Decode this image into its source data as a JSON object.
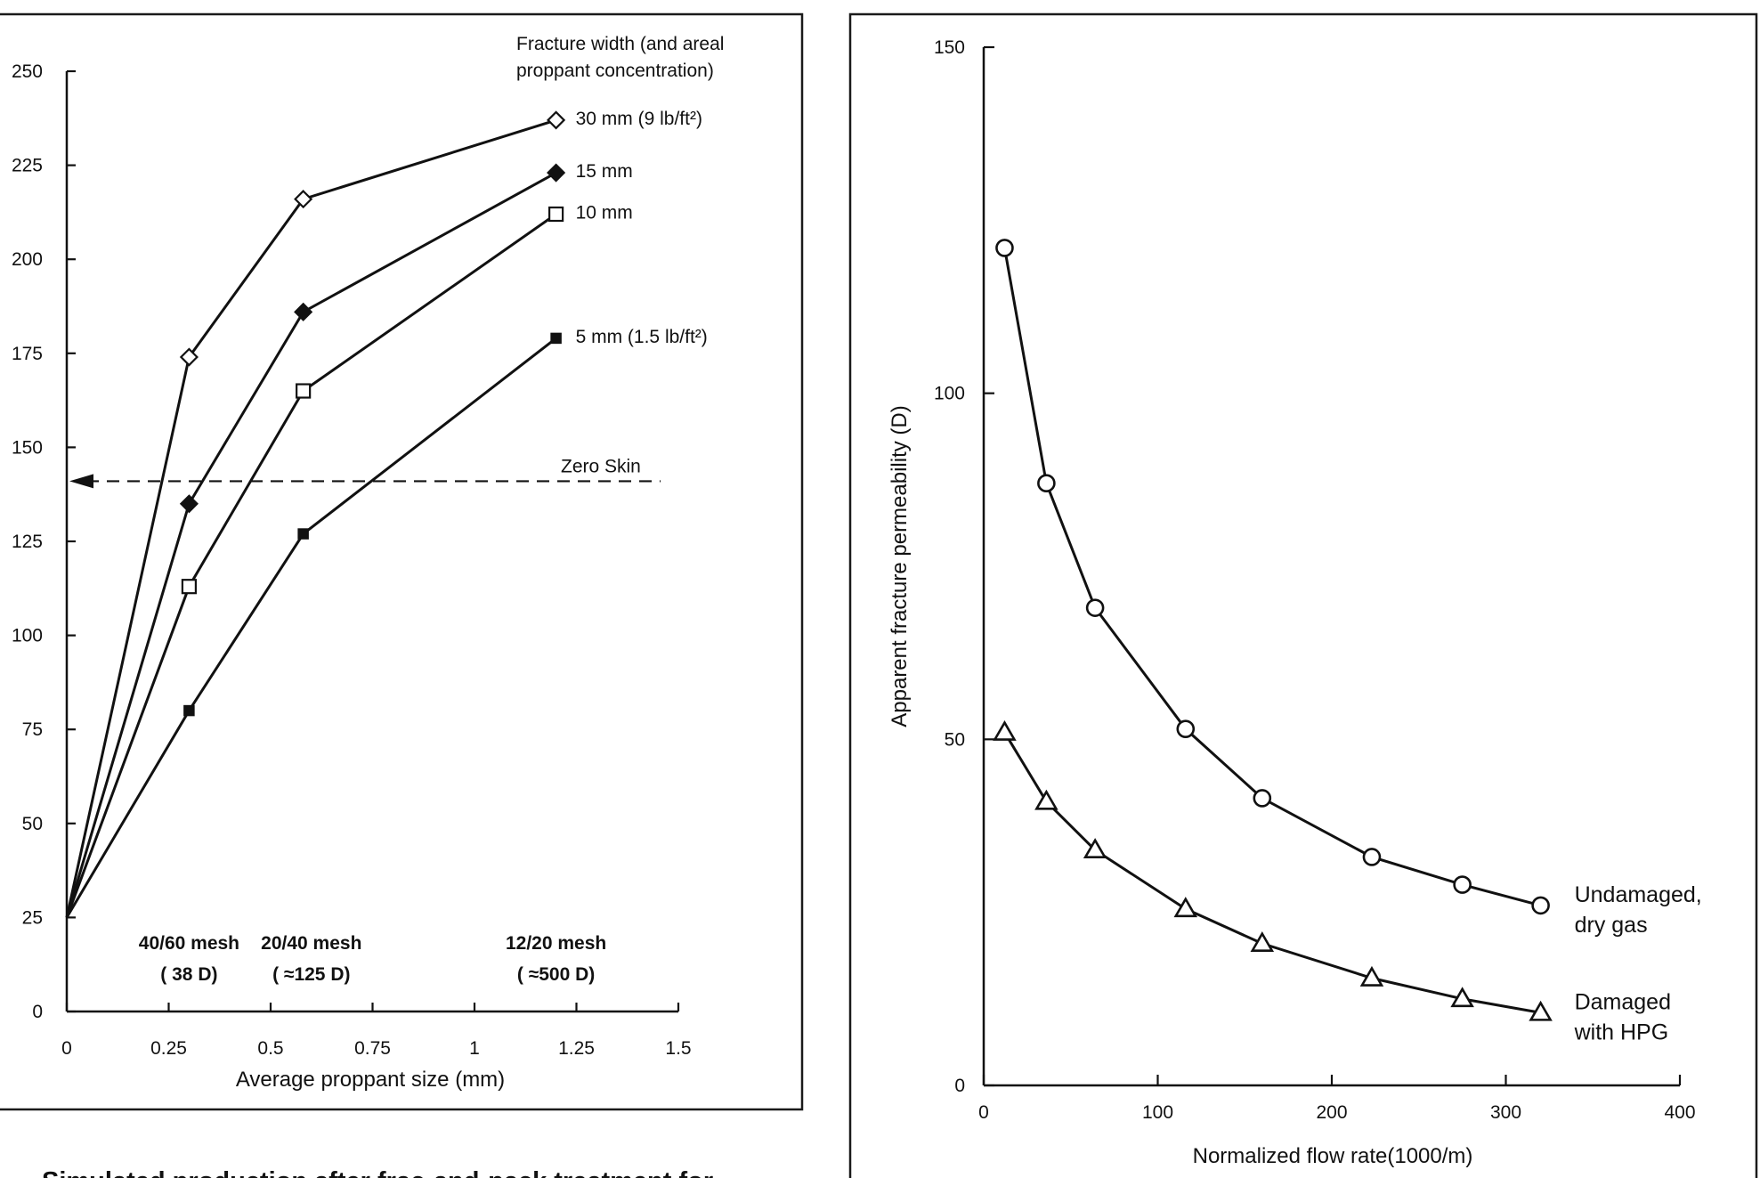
{
  "chart_data": [
    {
      "type": "line",
      "title": "",
      "xlabel": "Average proppant size (mm)",
      "ylabel": "",
      "xlim": [
        0,
        1.5
      ],
      "ylim": [
        0,
        250
      ],
      "x_ticks": [
        "0",
        "0.25",
        "0.5",
        "0.75",
        "1",
        "1.25",
        "1.5"
      ],
      "y_ticks": [
        "0",
        "25",
        "50",
        "75",
        "100",
        "125",
        "150",
        "175",
        "200",
        "225",
        "250"
      ],
      "grid": false,
      "legend_title": [
        "Fracture width  (and areal",
        "proppant concentration)"
      ],
      "series": [
        {
          "name": "30 mm (9 lb/ft²)",
          "marker": "diamond-open",
          "x": [
            0,
            0.3,
            0.58,
            1.2
          ],
          "y": [
            25,
            174,
            216,
            237
          ]
        },
        {
          "name": "15 mm",
          "marker": "diamond-filled",
          "x": [
            0,
            0.3,
            0.58,
            1.2
          ],
          "y": [
            25,
            135,
            186,
            223
          ]
        },
        {
          "name": "10 mm",
          "marker": "square-open",
          "x": [
            0,
            0.3,
            0.58,
            1.2
          ],
          "y": [
            25,
            113,
            165,
            212
          ]
        },
        {
          "name": "5 mm (1.5 lb/ft²)",
          "marker": "square-filled",
          "x": [
            0,
            0.3,
            0.58,
            1.2
          ],
          "y": [
            25,
            80,
            127,
            179
          ]
        }
      ],
      "reference_line": {
        "label": "Zero Skin",
        "y": 141,
        "x_range": [
          0,
          1.5
        ],
        "style": "dashed-arrow"
      },
      "annotations": [
        {
          "x": 0.3,
          "line1": "40/60 mesh",
          "line2": "(  38 D)"
        },
        {
          "x": 0.6,
          "line1": "20/40 mesh",
          "line2": "( ≈125 D)"
        },
        {
          "x": 1.2,
          "line1": "12/20 mesh",
          "line2": "( ≈500 D)"
        }
      ]
    },
    {
      "type": "line",
      "title": "",
      "xlabel": "Normalized flow rate(1000/m)",
      "ylabel": "Apparent fracture permeability (D)",
      "xlim": [
        0,
        400
      ],
      "ylim": [
        0,
        150
      ],
      "x_ticks": [
        "0",
        "100",
        "200",
        "300",
        "400"
      ],
      "y_ticks": [
        "0",
        "50",
        "100",
        "150"
      ],
      "grid": false,
      "series": [
        {
          "name": "Undamaged, dry gas",
          "label_lines": [
            "Undamaged,",
            "dry gas"
          ],
          "marker": "circle-open",
          "x": [
            12,
            36,
            64,
            116,
            160,
            223,
            275,
            320
          ],
          "y": [
            121,
            87,
            69,
            51.5,
            41.5,
            33,
            29,
            26
          ]
        },
        {
          "name": "Damaged with HPG",
          "label_lines": [
            "Damaged",
            "with HPG"
          ],
          "marker": "triangle-open",
          "x": [
            12,
            36,
            64,
            116,
            160,
            223,
            275,
            320
          ],
          "y": [
            51,
            41,
            34,
            25.5,
            20.5,
            15.5,
            12.5,
            10.5
          ]
        }
      ]
    }
  ],
  "caption": "—Simulated production after frac-and-pack treatment for"
}
